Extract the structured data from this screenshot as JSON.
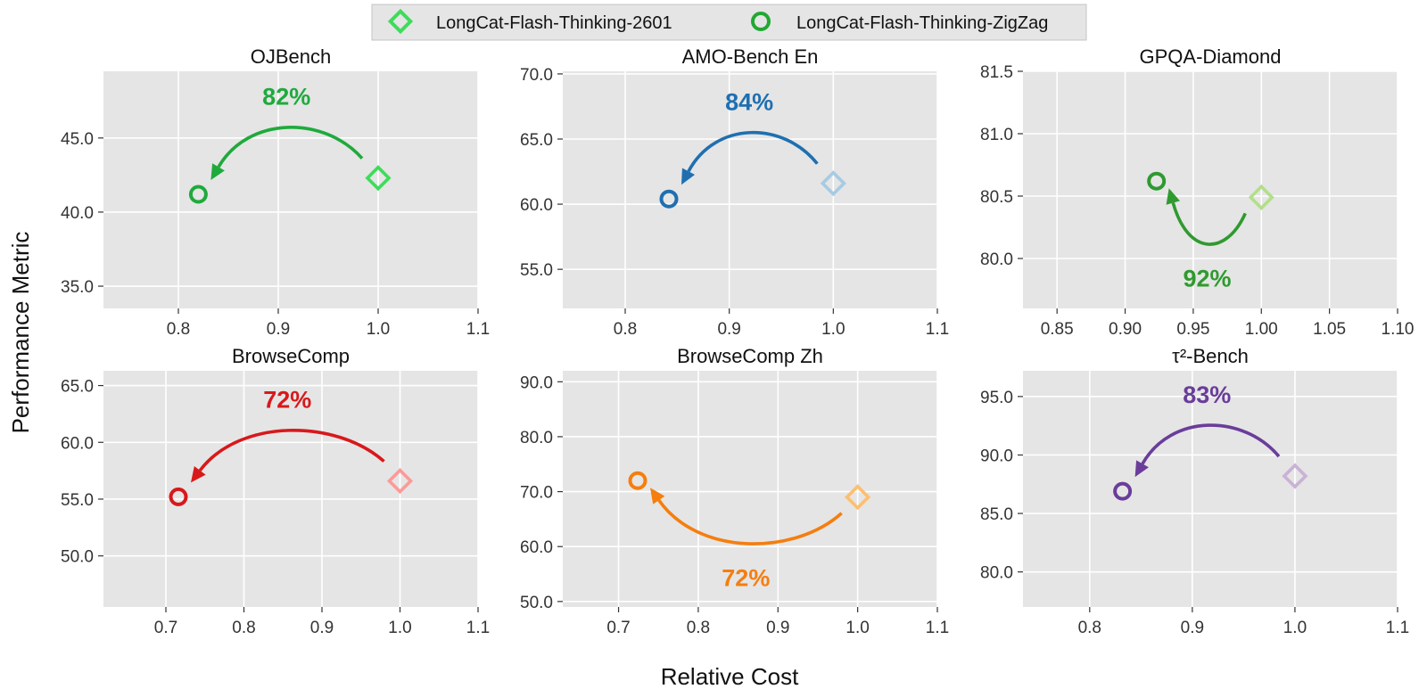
{
  "chart_data": {
    "type": "scatter",
    "xlabel": "Relative Cost",
    "ylabel": "Performance Metric",
    "legend": {
      "placement": "top-center",
      "entries": [
        {
          "label": "LongCat-Flash-Thinking-2601",
          "marker": "diamond",
          "color": "#3ddc5a"
        },
        {
          "label": "LongCat-Flash-Thinking-ZigZag",
          "marker": "circle",
          "color": "#22a832"
        }
      ]
    },
    "grid": true,
    "panels": [
      {
        "title": "OJBench",
        "xlim": [
          0.725,
          1.1
        ],
        "ylim": [
          33.5,
          49.5
        ],
        "xticks": [
          "0.8",
          "0.9",
          "1.0",
          "1.1"
        ],
        "yticks": [
          "35.0",
          "40.0",
          "45.0"
        ],
        "color_zigzag": "#1faa3c",
        "color_2601": "#3ddc5a",
        "points": {
          "LongCat-Flash-Thinking-2601": [
            1.0,
            42.3
          ],
          "LongCat-Flash-Thinking-ZigZag": [
            0.82,
            41.2
          ]
        },
        "annotation": {
          "text": "82%",
          "position": "above",
          "arrow_color": "#1faa3c"
        }
      },
      {
        "title": "AMO-Bench En",
        "xlim": [
          0.74,
          1.1
        ],
        "ylim": [
          52.0,
          70.2
        ],
        "xticks": [
          "0.8",
          "0.9",
          "1.0",
          "1.1"
        ],
        "yticks": [
          "55.0",
          "60.0",
          "65.0",
          "70.0"
        ],
        "color_zigzag": "#1f6fb0",
        "color_2601": "#a6cbe3",
        "points": {
          "LongCat-Flash-Thinking-2601": [
            1.0,
            61.6
          ],
          "LongCat-Flash-Thinking-ZigZag": [
            0.842,
            60.4
          ]
        },
        "annotation": {
          "text": "84%",
          "position": "above",
          "arrow_color": "#1f6fb0"
        }
      },
      {
        "title": "GPQA-Diamond",
        "xlim": [
          0.825,
          1.1
        ],
        "ylim": [
          79.6,
          81.5
        ],
        "xticks": [
          "0.85",
          "0.90",
          "0.95",
          "1.00",
          "1.05",
          "1.10"
        ],
        "yticks": [
          "80.0",
          "80.5",
          "81.0",
          "81.5"
        ],
        "color_zigzag": "#2f9a2f",
        "color_2601": "#b2df8a",
        "points": {
          "LongCat-Flash-Thinking-2601": [
            1.0,
            80.49
          ],
          "LongCat-Flash-Thinking-ZigZag": [
            0.923,
            80.62
          ]
        },
        "annotation": {
          "text": "92%",
          "position": "below",
          "arrow_color": "#2f9a2f"
        }
      },
      {
        "title": "BrowseComp",
        "xlim": [
          0.62,
          1.1
        ],
        "ylim": [
          45.5,
          66.3
        ],
        "xticks": [
          "0.7",
          "0.8",
          "0.9",
          "1.0",
          "1.1"
        ],
        "yticks": [
          "50.0",
          "55.0",
          "60.0",
          "65.0"
        ],
        "color_zigzag": "#d7191c",
        "color_2601": "#fb9a99",
        "points": {
          "LongCat-Flash-Thinking-2601": [
            1.0,
            56.6
          ],
          "LongCat-Flash-Thinking-ZigZag": [
            0.716,
            55.2
          ]
        },
        "annotation": {
          "text": "72%",
          "position": "above",
          "arrow_color": "#d7191c"
        }
      },
      {
        "title": "BrowseComp Zh",
        "xlim": [
          0.63,
          1.1
        ],
        "ylim": [
          49.0,
          92.0
        ],
        "xticks": [
          "0.7",
          "0.8",
          "0.9",
          "1.0",
          "1.1"
        ],
        "yticks": [
          "50.0",
          "60.0",
          "70.0",
          "80.0",
          "90.0"
        ],
        "color_zigzag": "#f57e0f",
        "color_2601": "#fdbf6f",
        "points": {
          "LongCat-Flash-Thinking-2601": [
            1.0,
            69.0
          ],
          "LongCat-Flash-Thinking-ZigZag": [
            0.724,
            72.0
          ]
        },
        "annotation": {
          "text": "72%",
          "position": "below",
          "arrow_color": "#f57e0f"
        }
      },
      {
        "title": "τ²-Bench",
        "xlim": [
          0.735,
          1.1
        ],
        "ylim": [
          77.0,
          97.2
        ],
        "xticks": [
          "0.8",
          "0.9",
          "1.0",
          "1.1"
        ],
        "yticks": [
          "80.0",
          "85.0",
          "90.0",
          "95.0"
        ],
        "color_zigzag": "#6a3d9a",
        "color_2601": "#cab2d6",
        "points": {
          "LongCat-Flash-Thinking-2601": [
            1.0,
            88.2
          ],
          "LongCat-Flash-Thinking-ZigZag": [
            0.832,
            86.9
          ]
        },
        "annotation": {
          "text": "83%",
          "position": "above",
          "arrow_color": "#6a3d9a"
        }
      }
    ]
  }
}
